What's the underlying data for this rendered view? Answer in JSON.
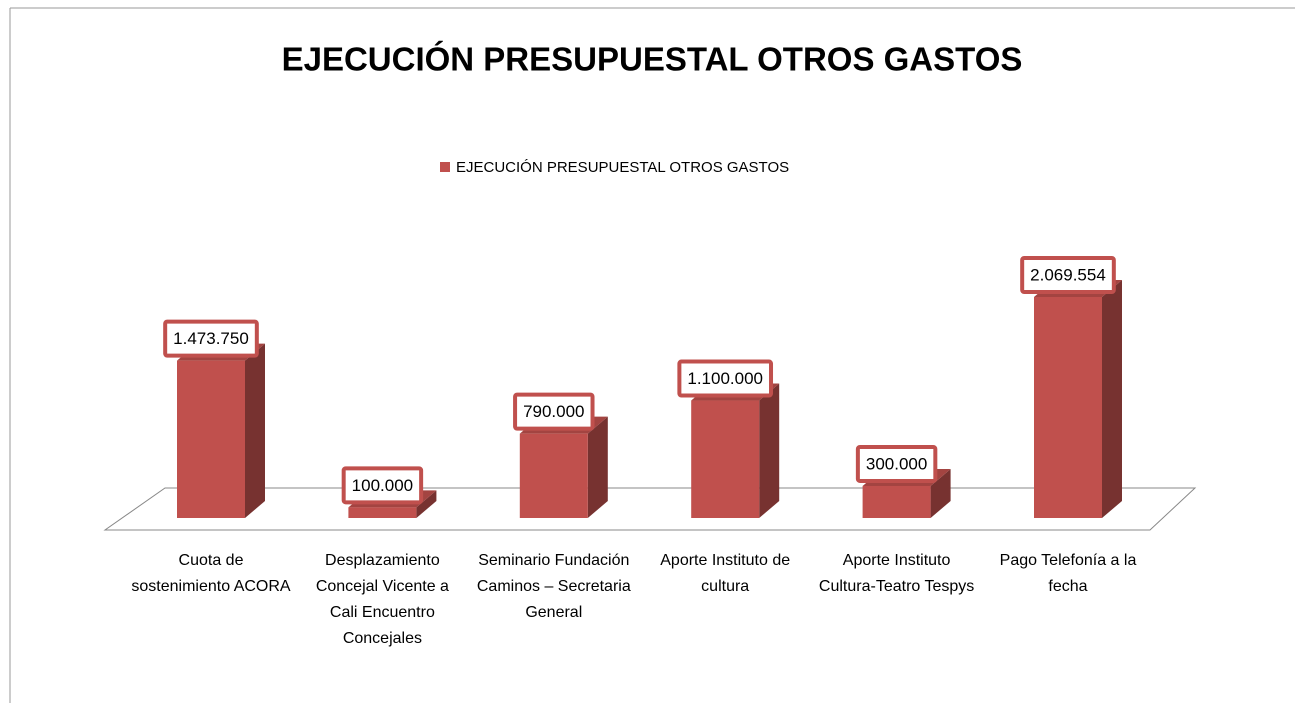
{
  "chart_data": {
    "type": "bar3d",
    "title": "EJECUCIÓN PRESUPUESTAL OTROS GASTOS",
    "categories": [
      "Cuota de sostenimiento ACORA",
      "Desplazamiento Concejal Vicente a Cali Encuentro Concejales",
      "Seminario Fundación Caminos – Secretaria General",
      "Aporte Instituto de cultura",
      "Aporte Instituto Cultura-Teatro Tespys",
      "Pago Telefonía a la fecha"
    ],
    "series": [
      {
        "name": "EJECUCIÓN PRESUPUESTAL OTROS GASTOS",
        "color": "#c0504d",
        "values": [
          1473750,
          100000,
          790000,
          1100000,
          300000,
          2069554
        ],
        "value_labels": [
          "1.473.750",
          "100.000",
          "790.000",
          "1.100.000",
          "300.000",
          "2.069.554"
        ]
      }
    ],
    "legend": "top"
  }
}
